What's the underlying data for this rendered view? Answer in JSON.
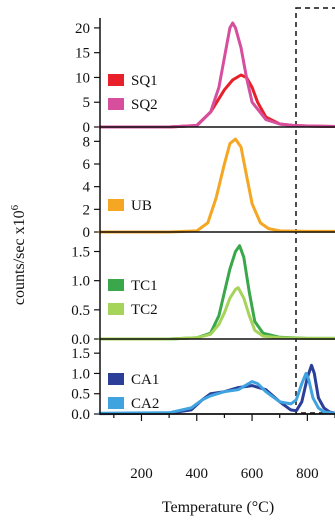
{
  "chart_data": {
    "type": "line",
    "xlabel": "Temperature (°C)",
    "ylabel": "counts/sec x10",
    "ylabel_exponent": "6",
    "xlim": [
      50,
      900
    ],
    "xticks": [
      100,
      200,
      300,
      400,
      500,
      600,
      700,
      800,
      900
    ],
    "xtick_labels": [
      "200",
      "400",
      "600",
      "800"
    ],
    "highlight": {
      "style": "dashed",
      "x_range": [
        750,
        900
      ]
    },
    "panels": [
      {
        "ylim": [
          0,
          22
        ],
        "yticks": [
          0,
          5,
          10,
          15,
          20
        ],
        "ytick_labels": [
          "0",
          "5",
          "10",
          "15",
          "20"
        ],
        "legend": [
          "SQ1",
          "SQ2"
        ],
        "series": [
          {
            "name": "SQ1",
            "color": "#e8202a",
            "x": [
              50,
              300,
              400,
              450,
              500,
              530,
              560,
              580,
              600,
              620,
              650,
              700,
              750,
              800,
              900
            ],
            "y": [
              0,
              0,
              0.3,
              3,
              7.5,
              9.5,
              10.5,
              10,
              8,
              5,
              2,
              0.6,
              0.3,
              0.2,
              0.1
            ]
          },
          {
            "name": "SQ2",
            "color": "#d64f9e",
            "x": [
              50,
              300,
              400,
              450,
              480,
              500,
              520,
              530,
              540,
              560,
              580,
              600,
              650,
              700,
              750,
              800,
              900
            ],
            "y": [
              0,
              0,
              0.3,
              3,
              8,
              14,
              20,
              21,
              20,
              16,
              10,
              5,
              1.5,
              0.6,
              0.3,
              0.2,
              0.1
            ]
          }
        ]
      },
      {
        "ylim": [
          0,
          9
        ],
        "yticks": [
          0,
          2,
          4,
          6,
          8
        ],
        "ytick_labels": [
          "0",
          "2",
          "4",
          "6",
          "8"
        ],
        "legend": [
          "UB"
        ],
        "series": [
          {
            "name": "UB",
            "color": "#f5a623",
            "x": [
              50,
              300,
              400,
              440,
              470,
              500,
              520,
              540,
              560,
              580,
              600,
              630,
              660,
              700,
              800,
              900
            ],
            "y": [
              0,
              0,
              0.1,
              0.8,
              3,
              6,
              7.8,
              8.2,
              7.5,
              5,
              2.5,
              0.8,
              0.3,
              0.1,
              0.05,
              0.05
            ]
          }
        ]
      },
      {
        "ylim": [
          0,
          1.8
        ],
        "yticks": [
          0.0,
          0.5,
          1.0,
          1.5
        ],
        "ytick_labels": [
          "0.0",
          "0.5",
          "1.0",
          "1.5"
        ],
        "legend": [
          "TC1",
          "TC2"
        ],
        "series": [
          {
            "name": "TC1",
            "color": "#3aa84a",
            "x": [
              50,
              300,
              400,
              450,
              480,
              500,
              520,
              540,
              555,
              570,
              590,
              610,
              640,
              700,
              800,
              900
            ],
            "y": [
              0,
              0,
              0.02,
              0.1,
              0.4,
              0.8,
              1.2,
              1.5,
              1.6,
              1.4,
              0.8,
              0.3,
              0.1,
              0.03,
              0.01,
              0.01
            ]
          },
          {
            "name": "TC2",
            "color": "#a6d35a",
            "x": [
              50,
              300,
              400,
              450,
              480,
              500,
              520,
              540,
              550,
              570,
              590,
              610,
              640,
              700,
              800,
              900
            ],
            "y": [
              0,
              0,
              0.02,
              0.08,
              0.25,
              0.45,
              0.7,
              0.85,
              0.88,
              0.7,
              0.4,
              0.15,
              0.05,
              0.02,
              0.01,
              0.01
            ]
          }
        ]
      },
      {
        "ylim": [
          0,
          1.8
        ],
        "yticks": [
          0.0,
          0.5,
          1.0,
          1.5
        ],
        "ytick_labels": [
          "0.0",
          "0.5",
          "1.0",
          "1.5"
        ],
        "legend": [
          "CA1",
          "CA2"
        ],
        "series": [
          {
            "name": "CA1",
            "color": "#2b3f99",
            "x": [
              50,
              300,
              380,
              420,
              450,
              500,
              550,
              600,
              650,
              700,
              740,
              760,
              780,
              800,
              815,
              825,
              840,
              860,
              880,
              900
            ],
            "y": [
              0.01,
              0.02,
              0.1,
              0.35,
              0.5,
              0.55,
              0.65,
              0.7,
              0.6,
              0.3,
              0.1,
              0.08,
              0.3,
              0.9,
              1.2,
              1.0,
              0.4,
              0.15,
              0.05,
              0.02
            ]
          },
          {
            "name": "CA2",
            "color": "#3fa3e0",
            "x": [
              50,
              300,
              380,
              420,
              450,
              500,
              550,
              600,
              620,
              650,
              700,
              740,
              760,
              780,
              795,
              805,
              820,
              840,
              860,
              900
            ],
            "y": [
              0.02,
              0.03,
              0.15,
              0.35,
              0.45,
              0.55,
              0.6,
              0.8,
              0.75,
              0.55,
              0.3,
              0.25,
              0.35,
              0.75,
              1.0,
              0.85,
              0.4,
              0.15,
              0.05,
              0.02
            ]
          }
        ]
      }
    ]
  }
}
